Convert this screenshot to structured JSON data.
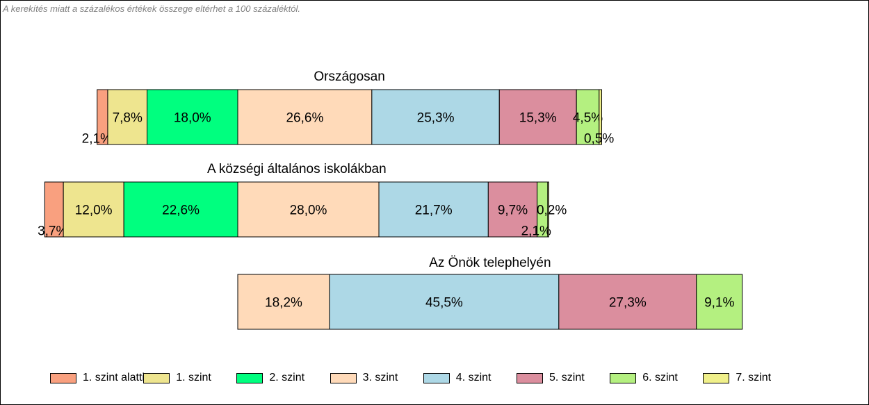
{
  "note": "A kerekítés miatt a  százalékos értékek összege eltérhet a 100 százaléktól.",
  "chart_data": {
    "type": "bar",
    "orientation": "horizontal",
    "stacked": true,
    "levels": [
      {
        "name": "1. szint alatti",
        "color": "#F9A07F"
      },
      {
        "name": "1. szint",
        "color": "#EEE58F"
      },
      {
        "name": "2. szint",
        "color": "#00FF7F"
      },
      {
        "name": "3. szint",
        "color": "#FFDAB9"
      },
      {
        "name": "4. szint",
        "color": "#ADD8E6"
      },
      {
        "name": "5. szint",
        "color": "#DB8E9E"
      },
      {
        "name": "6. szint",
        "color": "#B4F080"
      },
      {
        "name": "7. szint",
        "color": "#F0F08A"
      }
    ],
    "groups": [
      {
        "title": "Országosan",
        "values": [
          2.1,
          7.8,
          18.0,
          26.6,
          25.3,
          15.3,
          4.5,
          0.5
        ],
        "labels": [
          "2,1%",
          "7,8%",
          "18,0%",
          "26,6%",
          "25,3%",
          "15,3%",
          "4,5%",
          "0,5%"
        ]
      },
      {
        "title": "A községi általános iskolákban",
        "values": [
          3.7,
          12.0,
          22.6,
          28.0,
          21.7,
          9.7,
          2.1,
          0.2
        ],
        "labels": [
          "3,7%",
          "12,0%",
          "22,6%",
          "28,0%",
          "21,7%",
          "9,7%",
          "2,1%",
          "0,2%"
        ]
      },
      {
        "title": "Az Önök telephelyén",
        "values": [
          0,
          0,
          0,
          18.2,
          45.5,
          27.3,
          9.1,
          0
        ],
        "labels": [
          "",
          "",
          "",
          "18,2%",
          "45,5%",
          "27,3%",
          "9,1%",
          ""
        ]
      }
    ]
  }
}
